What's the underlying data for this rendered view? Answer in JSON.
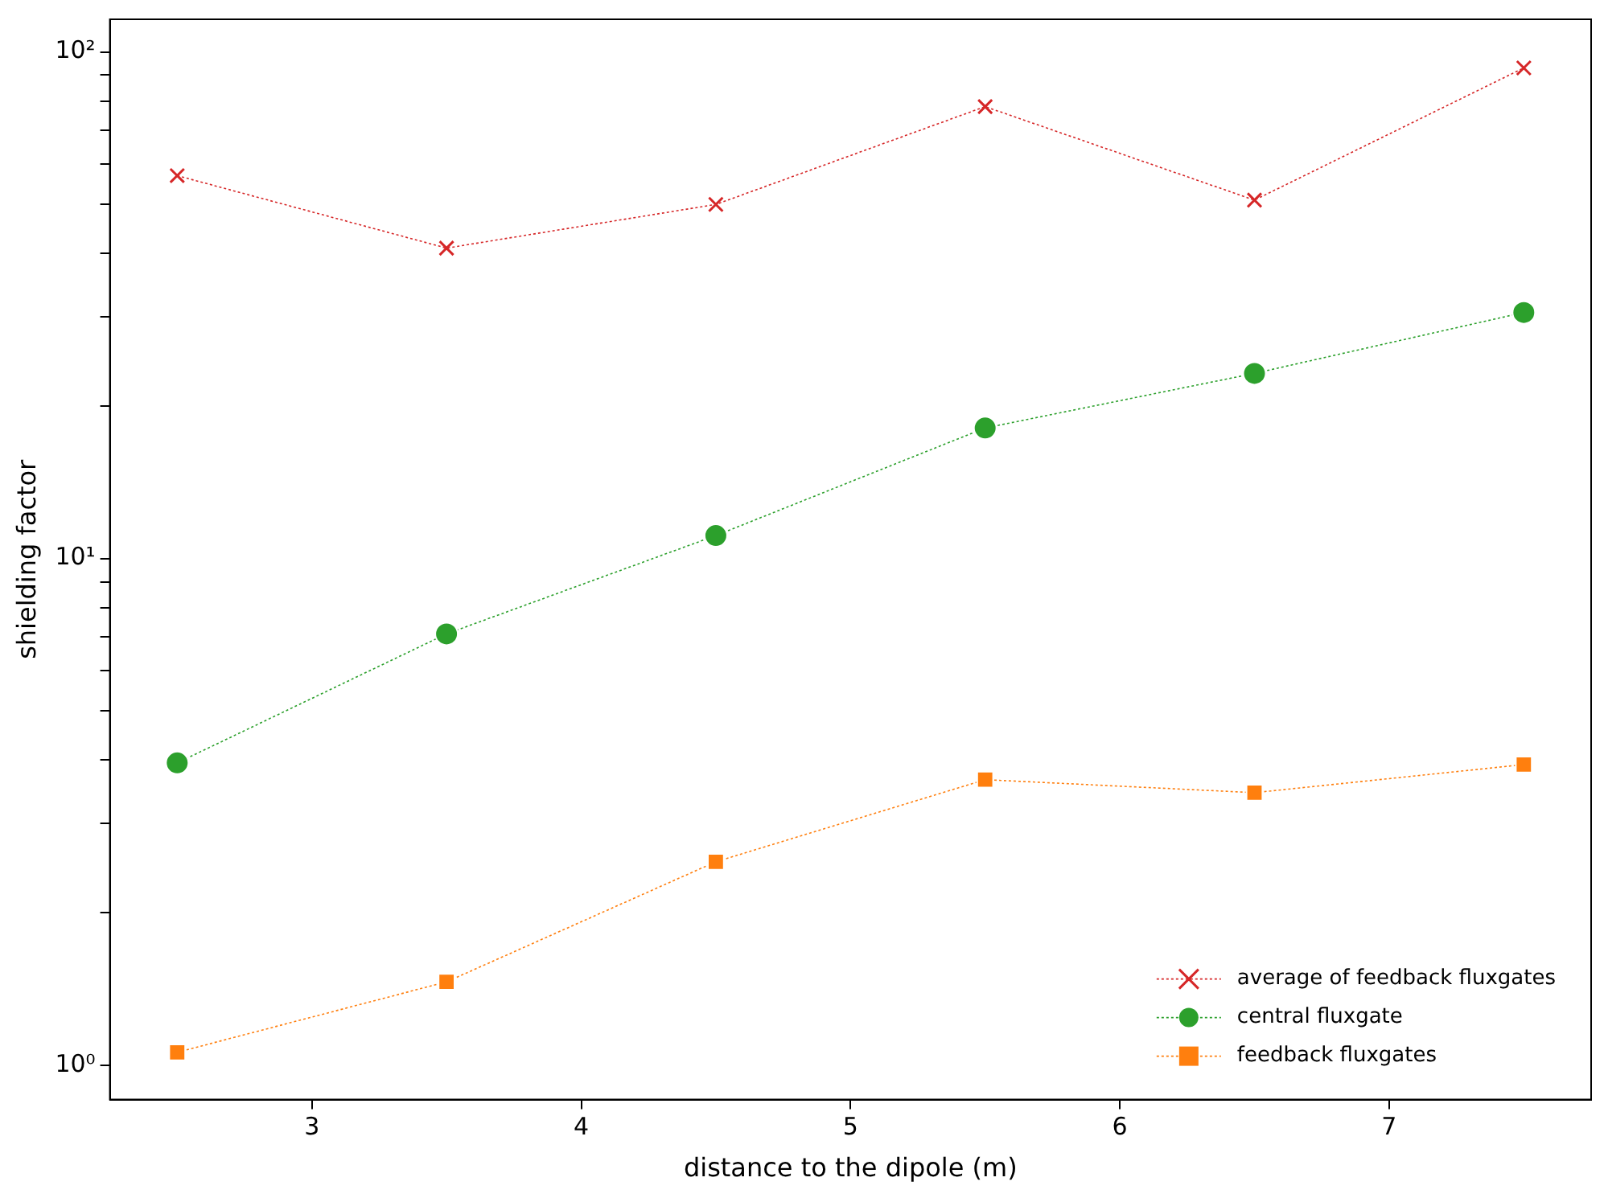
{
  "chart_data": {
    "type": "line",
    "xlabel": "distance to the dipole (m)",
    "ylabel": "shielding factor",
    "x": [
      2.5,
      3.5,
      4.5,
      5.5,
      6.5,
      7.5
    ],
    "series": [
      {
        "name": "average of feedback fluxgates",
        "color": "#d62728",
        "marker": "cross",
        "values": [
          57,
          41,
          50,
          78,
          51,
          93
        ]
      },
      {
        "name": "central fluxgate",
        "color": "#2ca02c",
        "marker": "circle",
        "values": [
          3.95,
          7.1,
          11.1,
          18.1,
          23.2,
          30.6
        ]
      },
      {
        "name": "feedback fluxgates",
        "color": "#ff7f0e",
        "marker": "square",
        "values": [
          1.06,
          1.46,
          2.52,
          3.66,
          3.45,
          3.92
        ]
      }
    ],
    "line_style": "dotted",
    "log": "y",
    "grid": false,
    "legend": "bottom right",
    "xlim": [
      2.25,
      7.75
    ],
    "xticks": [
      3,
      4,
      5,
      6,
      7
    ],
    "ylim": [
      0.855,
      116
    ],
    "yticks": [
      {
        "value": 1,
        "label": "10⁰"
      },
      {
        "value": 2,
        "label": null
      },
      {
        "value": 3,
        "label": null
      },
      {
        "value": 4,
        "label": null
      },
      {
        "value": 5,
        "label": null
      },
      {
        "value": 6,
        "label": null
      },
      {
        "value": 7,
        "label": null
      },
      {
        "value": 8,
        "label": null
      },
      {
        "value": 9,
        "label": null
      },
      {
        "value": 10,
        "label": "10¹"
      },
      {
        "value": 20,
        "label": null
      },
      {
        "value": 30,
        "label": null
      },
      {
        "value": 40,
        "label": null
      },
      {
        "value": 50,
        "label": null
      },
      {
        "value": 60,
        "label": null
      },
      {
        "value": 70,
        "label": null
      },
      {
        "value": 80,
        "label": null
      },
      {
        "value": 90,
        "label": null
      },
      {
        "value": 100,
        "label": "10²"
      }
    ]
  }
}
